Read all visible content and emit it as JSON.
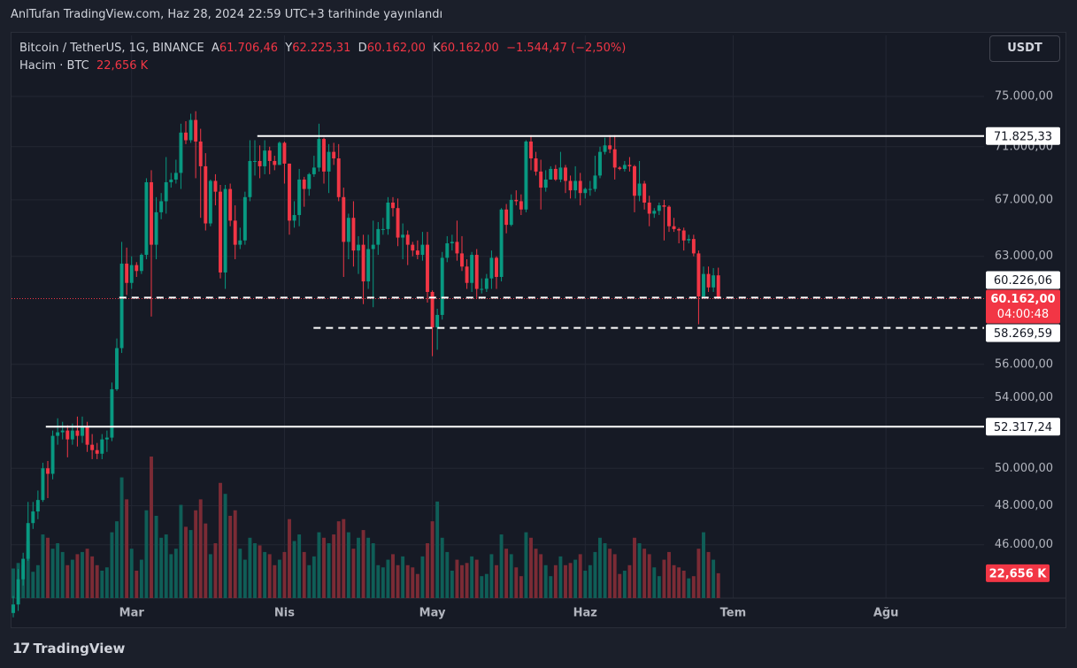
{
  "header": {
    "published": "AnlTufan TradingView.com, Haz 28, 2024 22:59 UTC+3 tarihinde yayınlandı"
  },
  "chart_data": {
    "type": "candlestick",
    "title": "Bitcoin / TetherUS, 1G, BINANCE",
    "legend": {
      "open_key": "A",
      "open": "61.706,46",
      "high_key": "Y",
      "high": "62.225,31",
      "low_key": "D",
      "low": "60.162,00",
      "close_key": "K",
      "close": "60.162,00",
      "change": "−1.544,47 (−2,50%)"
    },
    "volume_title": "Hacim · BTC",
    "volume_label": "22,656 K",
    "currency": "USDT",
    "last_price": {
      "value": 60162,
      "label": "60.162,00"
    },
    "countdown": "04:00:48",
    "up_color": "#089981",
    "down_color": "#f23645",
    "volume_up_color": "#0f5e57",
    "volume_down_color": "#7b2b35",
    "open": [
      42700,
      43100,
      44300,
      45300,
      47100,
      47700,
      48300,
      50000,
      49700,
      51800,
      52000,
      52100,
      51600,
      52100,
      51800,
      52300,
      51300,
      51000,
      50800,
      51600,
      51700,
      54500,
      57000,
      62500,
      61200,
      62400,
      62000,
      63100,
      68300,
      63800,
      66100,
      66900,
      68300,
      68500,
      69000,
      72100,
      71500,
      73100,
      71400,
      69500,
      65300,
      68400,
      67600,
      61900,
      67800,
      65500,
      63800,
      64100,
      67200,
      69900,
      69900,
      69500,
      70700,
      69900,
      69600,
      71300,
      69700,
      65500,
      65900,
      68500,
      67800,
      68900,
      69400,
      71600,
      69100,
      70600,
      70100,
      67200,
      64000,
      65700,
      63400,
      63800,
      61300,
      63500,
      63800,
      64900,
      64900,
      66800,
      66400,
      64300,
      64500,
      63800,
      63400,
      63100,
      63800,
      60600,
      58300,
      59100,
      62900,
      63900,
      64000,
      63200,
      62300,
      61200,
      63100,
      60800,
      60800,
      61500,
      62900,
      61600,
      66300,
      65200,
      67000,
      66900,
      66300,
      71400,
      70100,
      69100,
      67900,
      68500,
      69300,
      68500,
      69400,
      68400,
      67700,
      68400,
      67500,
      67800,
      67800,
      68800,
      70600,
      71100,
      70800,
      69400,
      69300,
      69600,
      69500,
      67300,
      68200,
      66800,
      66000,
      66200,
      66600,
      66500,
      65100,
      64900,
      64800,
      64100,
      64200,
      63200,
      60300,
      61800,
      60900,
      61706.46
    ],
    "high": [
      43500,
      44800,
      45600,
      48200,
      48200,
      48800,
      50300,
      50400,
      52100,
      52800,
      52600,
      52400,
      52500,
      52900,
      52900,
      52600,
      51900,
      51400,
      51900,
      52100,
      54900,
      57600,
      64000,
      63600,
      63000,
      62600,
      63200,
      68600,
      69200,
      67200,
      67500,
      70200,
      69000,
      70000,
      72800,
      73000,
      73600,
      73800,
      72400,
      70500,
      68500,
      68900,
      68100,
      68100,
      68200,
      66600,
      65000,
      67600,
      71500,
      71500,
      71100,
      71500,
      71000,
      70300,
      71400,
      71400,
      69700,
      66900,
      69300,
      68700,
      69000,
      70300,
      72800,
      71700,
      71200,
      71300,
      71200,
      67900,
      66000,
      66900,
      64400,
      64500,
      64500,
      65500,
      65400,
      65700,
      67200,
      67200,
      67100,
      65300,
      64800,
      64000,
      64100,
      64700,
      64700,
      60700,
      59500,
      63300,
      64400,
      64500,
      65500,
      64400,
      62800,
      63300,
      63500,
      61500,
      61800,
      63400,
      63000,
      66400,
      66700,
      67400,
      67700,
      67400,
      71500,
      71900,
      70600,
      70000,
      69200,
      69500,
      69600,
      70600,
      69600,
      68800,
      69500,
      69000,
      67900,
      68400,
      70300,
      71000,
      71700,
      71900,
      71900,
      69500,
      69900,
      70200,
      69600,
      69900,
      68400,
      67300,
      66400,
      66800,
      67000,
      66600,
      65700,
      65000,
      65000,
      64500,
      64500,
      63400,
      62300,
      62300,
      62200,
      62225.31
    ],
    "low": [
      42500,
      42800,
      44000,
      45200,
      46800,
      47300,
      48200,
      48400,
      49400,
      51300,
      51600,
      50600,
      51300,
      51200,
      51400,
      50900,
      50500,
      50500,
      50500,
      50900,
      51500,
      54400,
      56700,
      60400,
      60800,
      61600,
      61800,
      62800,
      59000,
      62800,
      65600,
      66000,
      67900,
      68200,
      67800,
      71200,
      71300,
      68600,
      65700,
      64800,
      65100,
      66600,
      61500,
      60800,
      65100,
      62800,
      63500,
      63800,
      66900,
      68800,
      68600,
      68900,
      68900,
      69200,
      69600,
      68200,
      64500,
      65000,
      65100,
      66500,
      67300,
      68700,
      69100,
      68200,
      67500,
      69600,
      66900,
      61600,
      62800,
      62300,
      61800,
      59800,
      60800,
      59600,
      63100,
      64500,
      64500,
      65800,
      63700,
      62800,
      62400,
      63000,
      62800,
      62700,
      59900,
      56500,
      56900,
      58800,
      62600,
      63400,
      62700,
      62000,
      60800,
      60600,
      60200,
      60500,
      60600,
      60800,
      60800,
      61300,
      64600,
      65100,
      66600,
      65900,
      66100,
      69200,
      68800,
      66300,
      67600,
      68500,
      68400,
      68300,
      67500,
      67100,
      67100,
      66600,
      67100,
      67300,
      67600,
      68600,
      70400,
      70500,
      68500,
      69200,
      69100,
      69100,
      66100,
      66900,
      66300,
      65100,
      65700,
      65900,
      64100,
      64700,
      64700,
      63900,
      63400,
      63900,
      63000,
      58500,
      60300,
      60600,
      60600,
      60162
    ],
    "close": [
      43100,
      44300,
      45300,
      47100,
      47700,
      48300,
      50000,
      49700,
      51800,
      52000,
      52100,
      51600,
      52100,
      51800,
      52300,
      51300,
      51000,
      50800,
      51600,
      51700,
      54500,
      57000,
      62500,
      61200,
      62400,
      62000,
      63100,
      68300,
      63800,
      66100,
      66900,
      68300,
      68500,
      69000,
      72100,
      71500,
      73100,
      71400,
      69500,
      65300,
      68400,
      67600,
      61900,
      67800,
      65500,
      63800,
      64100,
      67200,
      69900,
      69900,
      69500,
      70700,
      69900,
      69600,
      71300,
      69700,
      65500,
      65900,
      68500,
      67800,
      68900,
      69400,
      71600,
      69100,
      70600,
      70100,
      67200,
      64000,
      65700,
      63400,
      63800,
      61300,
      63500,
      63800,
      64900,
      64900,
      66800,
      66400,
      64300,
      64500,
      63800,
      63400,
      63100,
      63800,
      60600,
      58300,
      59100,
      62900,
      63900,
      64000,
      63200,
      62300,
      61200,
      63100,
      60800,
      60800,
      61500,
      62900,
      61600,
      66300,
      65200,
      67000,
      66900,
      66300,
      71400,
      70100,
      69100,
      67900,
      68500,
      69300,
      68500,
      69400,
      68400,
      67700,
      68400,
      67500,
      67800,
      67800,
      68800,
      70600,
      71100,
      70800,
      69400,
      69300,
      69600,
      69500,
      67300,
      68200,
      66800,
      66000,
      66200,
      66600,
      66500,
      65100,
      64900,
      64800,
      64100,
      64200,
      63200,
      60300,
      61800,
      60900,
      61706,
      60162
    ],
    "volume": [
      27000,
      32000,
      30000,
      52000,
      24000,
      30000,
      58000,
      55000,
      45000,
      50000,
      42000,
      30000,
      35000,
      40000,
      42000,
      45000,
      38000,
      30000,
      25000,
      28000,
      60000,
      70000,
      110000,
      90000,
      45000,
      25000,
      35000,
      80000,
      129000,
      75000,
      55000,
      58000,
      40000,
      45000,
      85000,
      65000,
      62000,
      80000,
      90000,
      68000,
      40000,
      50000,
      105000,
      95000,
      75000,
      80000,
      45000,
      35000,
      55000,
      50000,
      48000,
      42000,
      40000,
      30000,
      35000,
      42000,
      72000,
      52000,
      58000,
      42000,
      30000,
      38000,
      60000,
      55000,
      50000,
      58000,
      70000,
      72000,
      60000,
      45000,
      55000,
      62000,
      55000,
      50000,
      30000,
      28000,
      35000,
      40000,
      30000,
      38000,
      30000,
      28000,
      22000,
      38000,
      50000,
      70000,
      88000,
      55000,
      42000,
      25000,
      35000,
      30000,
      32000,
      38000,
      35000,
      20000,
      22000,
      40000,
      30000,
      58000,
      45000,
      40000,
      28000,
      20000,
      60000,
      55000,
      45000,
      40000,
      30000,
      20000,
      30000,
      38000,
      30000,
      32000,
      35000,
      40000,
      25000,
      30000,
      42000,
      55000,
      50000,
      45000,
      40000,
      22000,
      25000,
      30000,
      55000,
      50000,
      45000,
      40000,
      28000,
      20000,
      35000,
      42000,
      30000,
      28000,
      25000,
      18000,
      20000,
      45000,
      60000,
      42000,
      35000,
      22656
    ],
    "log_scale": true,
    "ylim": [
      43400,
      80160
    ],
    "yticks": [
      {
        "value": 46000,
        "label": "46.000,00"
      },
      {
        "value": 48000,
        "label": "48.000,00"
      },
      {
        "value": 50000,
        "label": "50.000,00"
      },
      {
        "value": 54000,
        "label": "54.000,00"
      },
      {
        "value": 56000,
        "label": "56.000,00"
      },
      {
        "value": 63000,
        "label": "63.000,00"
      },
      {
        "value": 67000,
        "label": "67.000,00"
      },
      {
        "value": 71000,
        "label": "71.000,00"
      },
      {
        "value": 75000,
        "label": "75.000,00"
      }
    ],
    "xlim": [
      -0.36,
      196.9
    ],
    "xticks": [
      {
        "value": 24,
        "label": "Mar"
      },
      {
        "value": 55,
        "label": "Nis"
      },
      {
        "value": 85,
        "label": "May"
      },
      {
        "value": 116,
        "label": "Haz"
      },
      {
        "value": 146,
        "label": "Tem"
      },
      {
        "value": 177,
        "label": "Ağu"
      }
    ],
    "levels": [
      {
        "value": 71825.33,
        "label": "71.825,33",
        "x_start": 49.5,
        "style": "solid"
      },
      {
        "value": 60226.06,
        "label": "60.226,06",
        "x_start": 21.5,
        "style": "dashed"
      },
      {
        "value": 58269.59,
        "label": "58.269,59",
        "x_start": 60.9,
        "style": "dashed"
      },
      {
        "value": 52317.24,
        "label": "52.317,24",
        "x_start": 6.6,
        "style": "solid"
      }
    ],
    "grid": true
  },
  "footer": {
    "brand": "TradingView"
  }
}
